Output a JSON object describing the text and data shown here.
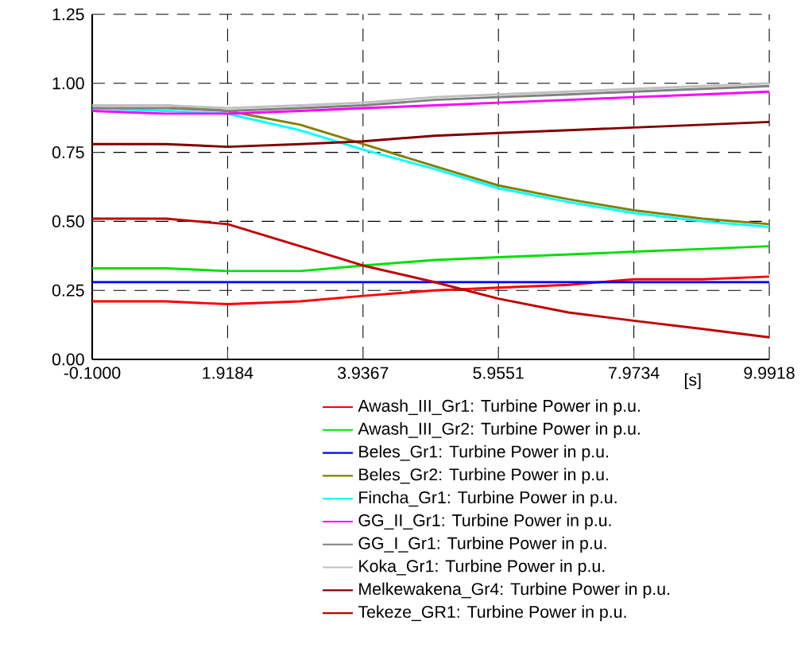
{
  "chart_data": {
    "type": "line",
    "xlabel": "[s]",
    "x": [
      -0.1,
      1,
      1.9184,
      3,
      3.9367,
      5,
      5.9551,
      7,
      7.9734,
      9,
      9.9918
    ],
    "xlim": [
      -0.1,
      9.9918
    ],
    "xticks": [
      {
        "value": -0.1,
        "label": "-0.1000"
      },
      1.9184,
      3.9367,
      5.9551,
      7.9734,
      9.9918
    ],
    "ylim": [
      0,
      1.25
    ],
    "yticks": [
      {
        "value": 0,
        "label": "0.00"
      },
      {
        "value": 0.25,
        "label": "0.25"
      },
      {
        "value": 0.5,
        "label": "0.50"
      },
      {
        "value": 0.75,
        "label": "0.75"
      },
      {
        "value": 1,
        "label": "1.00"
      },
      {
        "value": 1.25,
        "label": "1.25"
      }
    ],
    "grid": true,
    "legend": "bottom",
    "marker": "none",
    "line_style": "solid",
    "series": [
      {
        "name": "Awash_III_Gr1: Turbine Power in p.u.",
        "color": "#ff0000",
        "values": [
          0.21,
          0.21,
          0.2,
          0.21,
          0.23,
          0.25,
          0.26,
          0.27,
          0.29,
          0.29,
          0.3
        ]
      },
      {
        "name": "Awash_III_Gr2: Turbine Power in p.u.",
        "color": "#00e000",
        "values": [
          0.33,
          0.33,
          0.32,
          0.32,
          0.34,
          0.36,
          0.37,
          0.38,
          0.39,
          0.4,
          0.41
        ]
      },
      {
        "name": "Beles_Gr1: Turbine Power in p.u.",
        "color": "#0000ff",
        "values": [
          0.28,
          0.28,
          0.28,
          0.28,
          0.28,
          0.28,
          0.28,
          0.28,
          0.28,
          0.28,
          0.28
        ]
      },
      {
        "name": "Beles_Gr2: Turbine Power in p.u.",
        "color": "#808000",
        "values": [
          0.92,
          0.92,
          0.9,
          0.85,
          0.78,
          0.7,
          0.63,
          0.58,
          0.54,
          0.51,
          0.49
        ]
      },
      {
        "name": "Fincha_Gr1: Turbine Power in p.u.",
        "color": "#00ffff",
        "values": [
          0.91,
          0.9,
          0.89,
          0.83,
          0.76,
          0.69,
          0.62,
          0.57,
          0.53,
          0.5,
          0.48
        ]
      },
      {
        "name": "GG_II_Gr1: Turbine Power in p.u.",
        "color": "#ff00ff",
        "values": [
          0.9,
          0.89,
          0.89,
          0.9,
          0.91,
          0.92,
          0.93,
          0.94,
          0.95,
          0.96,
          0.97
        ]
      },
      {
        "name": "GG_I_Gr1: Turbine Power in p.u.",
        "color": "#808080",
        "values": [
          0.91,
          0.91,
          0.9,
          0.91,
          0.92,
          0.94,
          0.95,
          0.96,
          0.97,
          0.98,
          0.99
        ]
      },
      {
        "name": "Koka_Gr1: Turbine Power in p.u.",
        "color": "#c0c0c0",
        "values": [
          0.92,
          0.92,
          0.91,
          0.92,
          0.93,
          0.95,
          0.96,
          0.97,
          0.98,
          0.99,
          1.0
        ]
      },
      {
        "name": "Melkewakena_Gr4: Turbine Power in p.u.",
        "color": "#800000",
        "values": [
          0.78,
          0.78,
          0.77,
          0.78,
          0.79,
          0.81,
          0.82,
          0.83,
          0.84,
          0.85,
          0.86
        ]
      },
      {
        "name": "Tekeze_GR1: Turbine Power in p.u.",
        "color": "#c00000",
        "values": [
          0.51,
          0.51,
          0.49,
          0.41,
          0.34,
          0.28,
          0.22,
          0.17,
          0.14,
          0.11,
          0.08
        ]
      }
    ]
  }
}
